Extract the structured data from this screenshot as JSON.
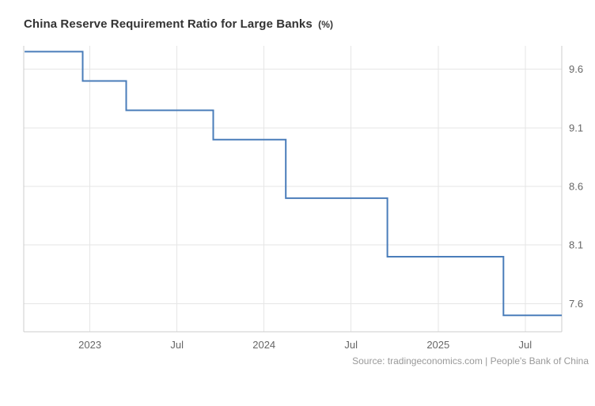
{
  "header": {
    "title": "China Reserve Requirement Ratio for Large Banks",
    "unit": "(%)"
  },
  "footer": {
    "source": "Source: tradingeconomics.com | People's Bank of China"
  },
  "colors": {
    "line": "#4a7dba",
    "grid": "#e6e6e6",
    "axis": "#cccccc",
    "tick_label": "#666666",
    "title": "#333333",
    "source": "#999999"
  },
  "chart_data": {
    "type": "line",
    "step": true,
    "title": "China Reserve Requirement Ratio for Large Banks (%)",
    "legend_position": "none",
    "grid": true,
    "y_axis_position": "right",
    "line_color": "#4a7dba",
    "x_domain": [
      2022.62,
      2025.71
    ],
    "y_domain": [
      7.36,
      9.8
    ],
    "y_ticks": [
      "9.6",
      "9.1",
      "8.6",
      "8.1",
      "7.6"
    ],
    "x_ticks": [
      {
        "t": 2023.0,
        "label": "2023"
      },
      {
        "t": 2023.5,
        "label": "Jul"
      },
      {
        "t": 2024.0,
        "label": "2024"
      },
      {
        "t": 2024.5,
        "label": "Jul"
      },
      {
        "t": 2025.0,
        "label": "2025"
      },
      {
        "t": 2025.5,
        "label": "Jul"
      }
    ],
    "series": [
      {
        "name": "Reserve Requirement Ratio for Large Banks",
        "points": [
          {
            "date": "2022-08",
            "value": 9.75
          },
          {
            "date": "2022-12",
            "value": 9.5
          },
          {
            "date": "2023-03",
            "value": 9.25
          },
          {
            "date": "2023-09",
            "value": 9.0
          },
          {
            "date": "2024-02",
            "value": 8.5
          },
          {
            "date": "2024-09",
            "value": 8.0
          },
          {
            "date": "2025-05",
            "value": 7.5
          }
        ]
      }
    ],
    "source": "Source: tradingeconomics.com | People's Bank of China"
  }
}
